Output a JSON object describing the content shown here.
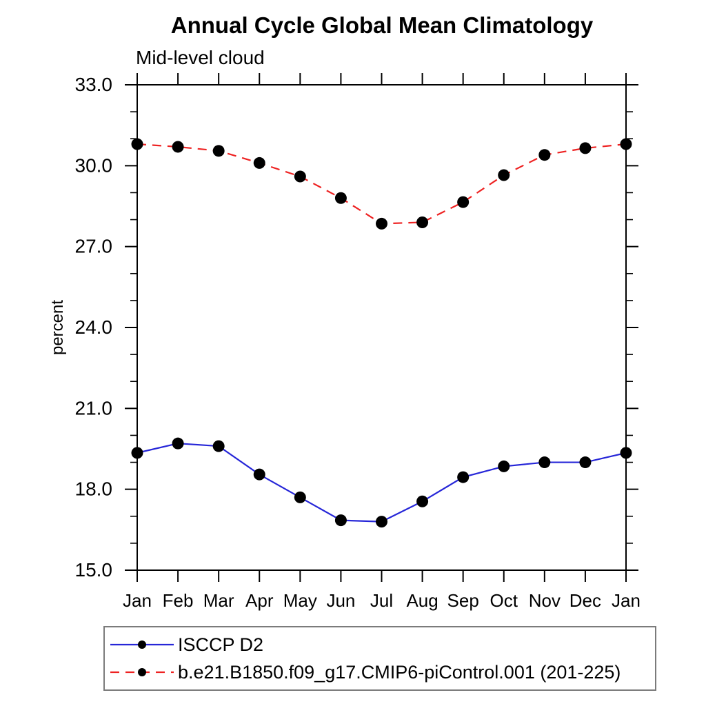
{
  "header": {
    "title": "Annual Cycle Global Mean Climatology",
    "subtitle": "Mid-level cloud"
  },
  "chart_data": {
    "type": "line",
    "title": "Annual Cycle Global Mean Climatology",
    "subtitle": "Mid-level cloud",
    "xlabel": "",
    "ylabel": "percent",
    "ylim": [
      15.0,
      33.0
    ],
    "ytick_major_step": 3.0,
    "ytick_minor_step": 1.0,
    "ytick_labels": [
      "15.0",
      "18.0",
      "21.0",
      "24.0",
      "27.0",
      "30.0",
      "33.0"
    ],
    "categories": [
      "Jan",
      "Feb",
      "Mar",
      "Apr",
      "May",
      "Jun",
      "Jul",
      "Aug",
      "Sep",
      "Oct",
      "Nov",
      "Dec",
      "Jan"
    ],
    "grid": false,
    "frame": "box-outward-ticks",
    "legend_position": "bottom-left-box",
    "marker": "filled-circle",
    "marker_color": "#000000",
    "axis_color": "#000000",
    "series": [
      {
        "name": "ISCCP D2",
        "color": "#2626d8",
        "line_style": "solid",
        "values": [
          19.35,
          19.7,
          19.6,
          18.55,
          17.7,
          16.85,
          16.8,
          17.55,
          18.45,
          18.85,
          19.0,
          19.0,
          19.35
        ]
      },
      {
        "name": "b.e21.B1850.f09_g17.CMIP6-piControl.001 (201-225)",
        "color": "#ee2222",
        "line_style": "dashed",
        "values": [
          30.8,
          30.7,
          30.55,
          30.1,
          29.6,
          28.8,
          27.85,
          27.9,
          28.65,
          29.65,
          30.4,
          30.65,
          30.8
        ]
      }
    ]
  }
}
